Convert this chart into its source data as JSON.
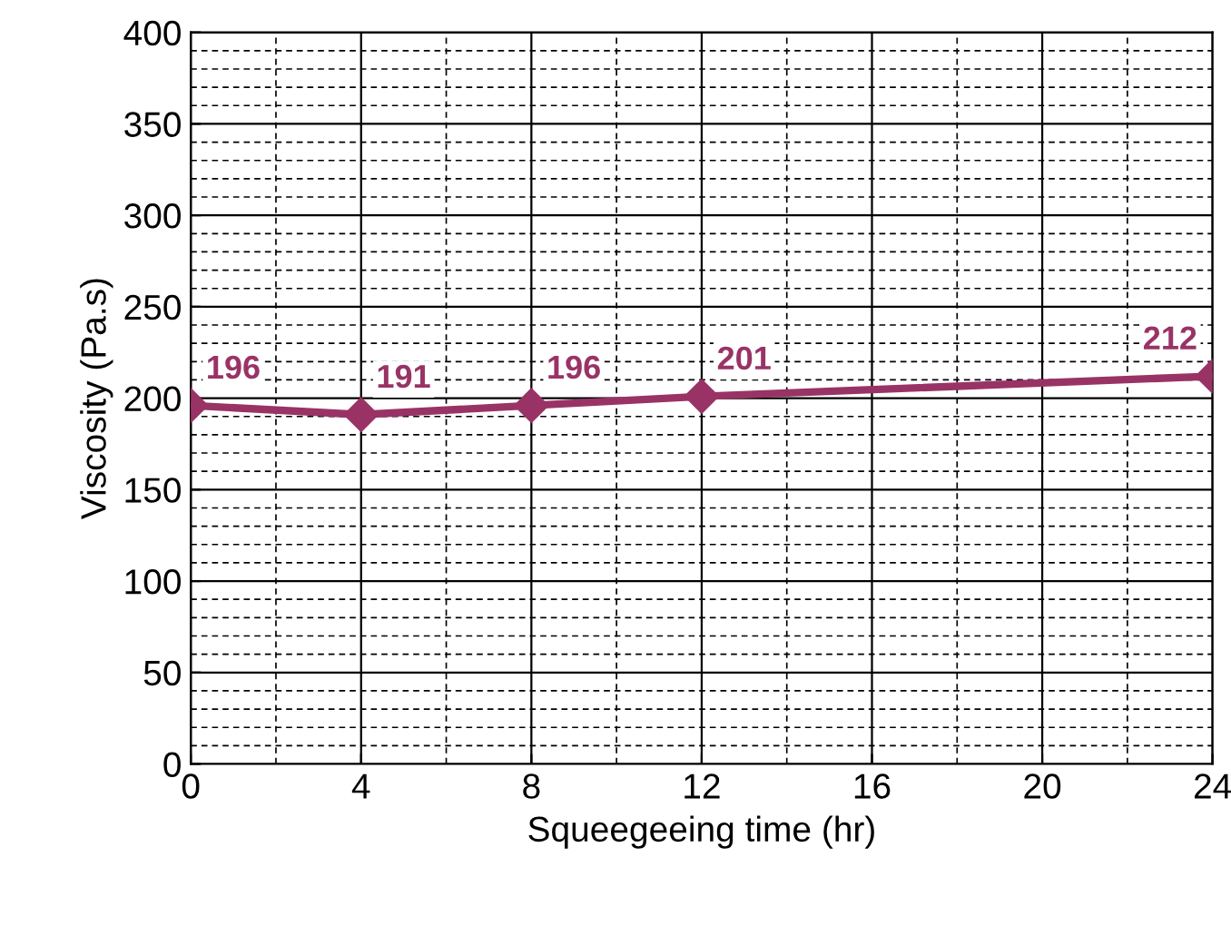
{
  "chart_data": {
    "type": "line",
    "xlabel": "Squeegeeing time (hr)",
    "ylabel": "Viscosity (Pa.s)",
    "x": [
      0,
      4,
      8,
      12,
      24
    ],
    "series": [
      {
        "color": "#993366",
        "values": [
          196,
          191,
          196,
          201,
          212
        ]
      }
    ],
    "xlim": [
      0,
      24
    ],
    "xticks": [
      0,
      4,
      8,
      12,
      16,
      20,
      24
    ],
    "ylim": [
      0,
      400
    ],
    "yticks": [
      0,
      50,
      100,
      150,
      200,
      250,
      300,
      350,
      400
    ],
    "grid": true,
    "marker": "diamond",
    "line_style": "solid",
    "data_labels": true
  }
}
